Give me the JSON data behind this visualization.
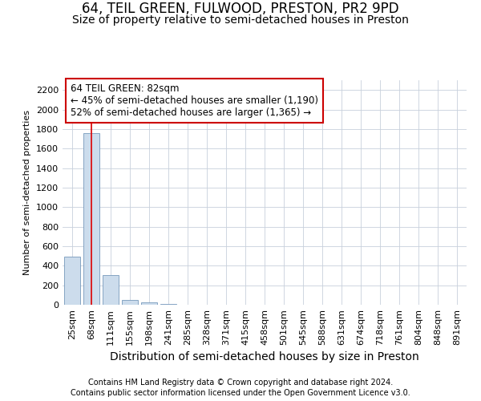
{
  "title": "64, TEIL GREEN, FULWOOD, PRESTON, PR2 9PD",
  "subtitle": "Size of property relative to semi-detached houses in Preston",
  "xlabel": "Distribution of semi-detached houses by size in Preston",
  "ylabel": "Number of semi-detached properties",
  "footer_line1": "Contains HM Land Registry data © Crown copyright and database right 2024.",
  "footer_line2": "Contains public sector information licensed under the Open Government Licence v3.0.",
  "categories": [
    "25sqm",
    "68sqm",
    "111sqm",
    "155sqm",
    "198sqm",
    "241sqm",
    "285sqm",
    "328sqm",
    "371sqm",
    "415sqm",
    "458sqm",
    "501sqm",
    "545sqm",
    "588sqm",
    "631sqm",
    "674sqm",
    "718sqm",
    "761sqm",
    "804sqm",
    "848sqm",
    "891sqm"
  ],
  "values": [
    490,
    1760,
    305,
    50,
    22,
    10,
    0,
    0,
    0,
    0,
    0,
    0,
    0,
    0,
    0,
    0,
    0,
    0,
    0,
    0,
    0
  ],
  "bar_color": "#ccdcec",
  "bar_edge_color": "#7799bb",
  "grid_color": "#c8d0dc",
  "red_line_x": 1,
  "red_line_color": "#dd0000",
  "annotation_line1": "64 TEIL GREEN: 82sqm",
  "annotation_line2": "← 45% of semi-detached houses are smaller (1,190)",
  "annotation_line3": "52% of semi-detached houses are larger (1,365) →",
  "annotation_box_edge_color": "#cc0000",
  "ylim": [
    0,
    2300
  ],
  "yticks": [
    0,
    200,
    400,
    600,
    800,
    1000,
    1200,
    1400,
    1600,
    1800,
    2000,
    2200
  ],
  "background_color": "#ffffff",
  "title_fontsize": 12,
  "subtitle_fontsize": 10,
  "xlabel_fontsize": 10,
  "ylabel_fontsize": 8,
  "tick_fontsize": 8,
  "annotation_fontsize": 8.5
}
